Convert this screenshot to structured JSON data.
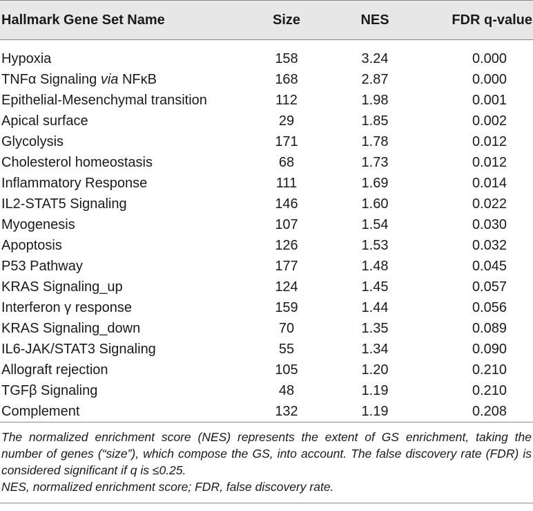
{
  "table": {
    "headers": {
      "name": "Hallmark Gene Set Name",
      "size": "Size",
      "nes": "NES",
      "fdr": "FDR q-value"
    },
    "rows": [
      {
        "name": "Hypoxia",
        "size": "158",
        "nes": "3.24",
        "fdr": "0.000"
      },
      {
        "name": "TNFα Signaling via NFκB",
        "size": "168",
        "nes": "2.87",
        "fdr": "0.000"
      },
      {
        "name": "Epithelial-Mesenchymal transition",
        "size": "112",
        "nes": "1.98",
        "fdr": "0.001"
      },
      {
        "name": "Apical surface",
        "size": "29",
        "nes": "1.85",
        "fdr": "0.002"
      },
      {
        "name": "Glycolysis",
        "size": "171",
        "nes": "1.78",
        "fdr": "0.012"
      },
      {
        "name": "Cholesterol homeostasis",
        "size": "68",
        "nes": "1.73",
        "fdr": "0.012"
      },
      {
        "name": "Inflammatory Response",
        "size": "111",
        "nes": "1.69",
        "fdr": "0.014"
      },
      {
        "name": "IL2-STAT5 Signaling",
        "size": "146",
        "nes": "1.60",
        "fdr": "0.022"
      },
      {
        "name": "Myogenesis",
        "size": "107",
        "nes": "1.54",
        "fdr": "0.030"
      },
      {
        "name": "Apoptosis",
        "size": "126",
        "nes": "1.53",
        "fdr": "0.032"
      },
      {
        "name": "P53 Pathway",
        "size": "177",
        "nes": "1.48",
        "fdr": "0.045"
      },
      {
        "name": "KRAS Signaling_up",
        "size": "124",
        "nes": "1.45",
        "fdr": "0.057"
      },
      {
        "name": "Interferon γ response",
        "size": "159",
        "nes": "1.44",
        "fdr": "0.056"
      },
      {
        "name": "KRAS Signaling_down",
        "size": "70",
        "nes": "1.35",
        "fdr": "0.089"
      },
      {
        "name": "IL6-JAK/STAT3 Signaling",
        "size": "55",
        "nes": "1.34",
        "fdr": "0.090"
      },
      {
        "name": "Allograft rejection",
        "size": "105",
        "nes": "1.20",
        "fdr": "0.210"
      },
      {
        "name": "TGFβ Signaling",
        "size": "48",
        "nes": "1.19",
        "fdr": "0.210"
      },
      {
        "name": "Complement",
        "size": "132",
        "nes": "1.19",
        "fdr": "0.208"
      }
    ]
  },
  "footnote": {
    "description": "The normalized enrichment score (NES) represents the extent of GS enrichment, taking the number of genes (“size”), which compose the GS, into account. The false discovery rate (FDR) is considered significant if q is ≤0.25.",
    "abbreviations": "NES, normalized enrichment score; FDR, false discovery rate."
  }
}
